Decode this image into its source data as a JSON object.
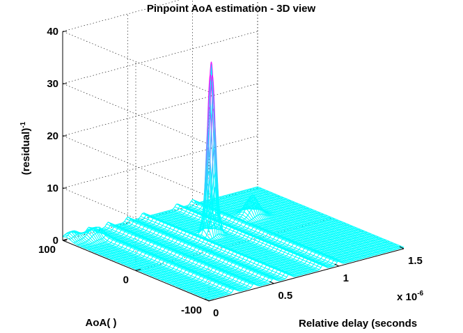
{
  "chart_data": {
    "type": "surface",
    "title": "Pinpoint AoA estimation - 3D view",
    "zlabel": "(residual)",
    "zlabel_exponent": "-1",
    "ylabel": "AoA( )",
    "xlabel": "Relative delay (seconds",
    "x_multiplier_label": "x 10",
    "x_multiplier_exponent": "-6",
    "x_ticks": [
      "0",
      "0.5",
      "1",
      "1.5"
    ],
    "y_ticks": [
      "100",
      "0",
      "-100"
    ],
    "z_ticks": [
      "0",
      "10",
      "20",
      "30",
      "40"
    ],
    "xlim": [
      0,
      1.5e-06
    ],
    "ylim": [
      -100,
      100
    ],
    "zlim": [
      0,
      40
    ],
    "grid": true,
    "surface_color": "#00ffff",
    "peak_color": "#ff00ff",
    "peaks": [
      {
        "x": 7.5e-07,
        "y": 30,
        "z": 33
      },
      {
        "x": 1.15e-06,
        "y": 45,
        "z": 4
      },
      {
        "x": 1.5e-07,
        "y": 85,
        "z": 2
      },
      {
        "x": 5e-08,
        "y": 95,
        "z": 1.5
      }
    ]
  }
}
